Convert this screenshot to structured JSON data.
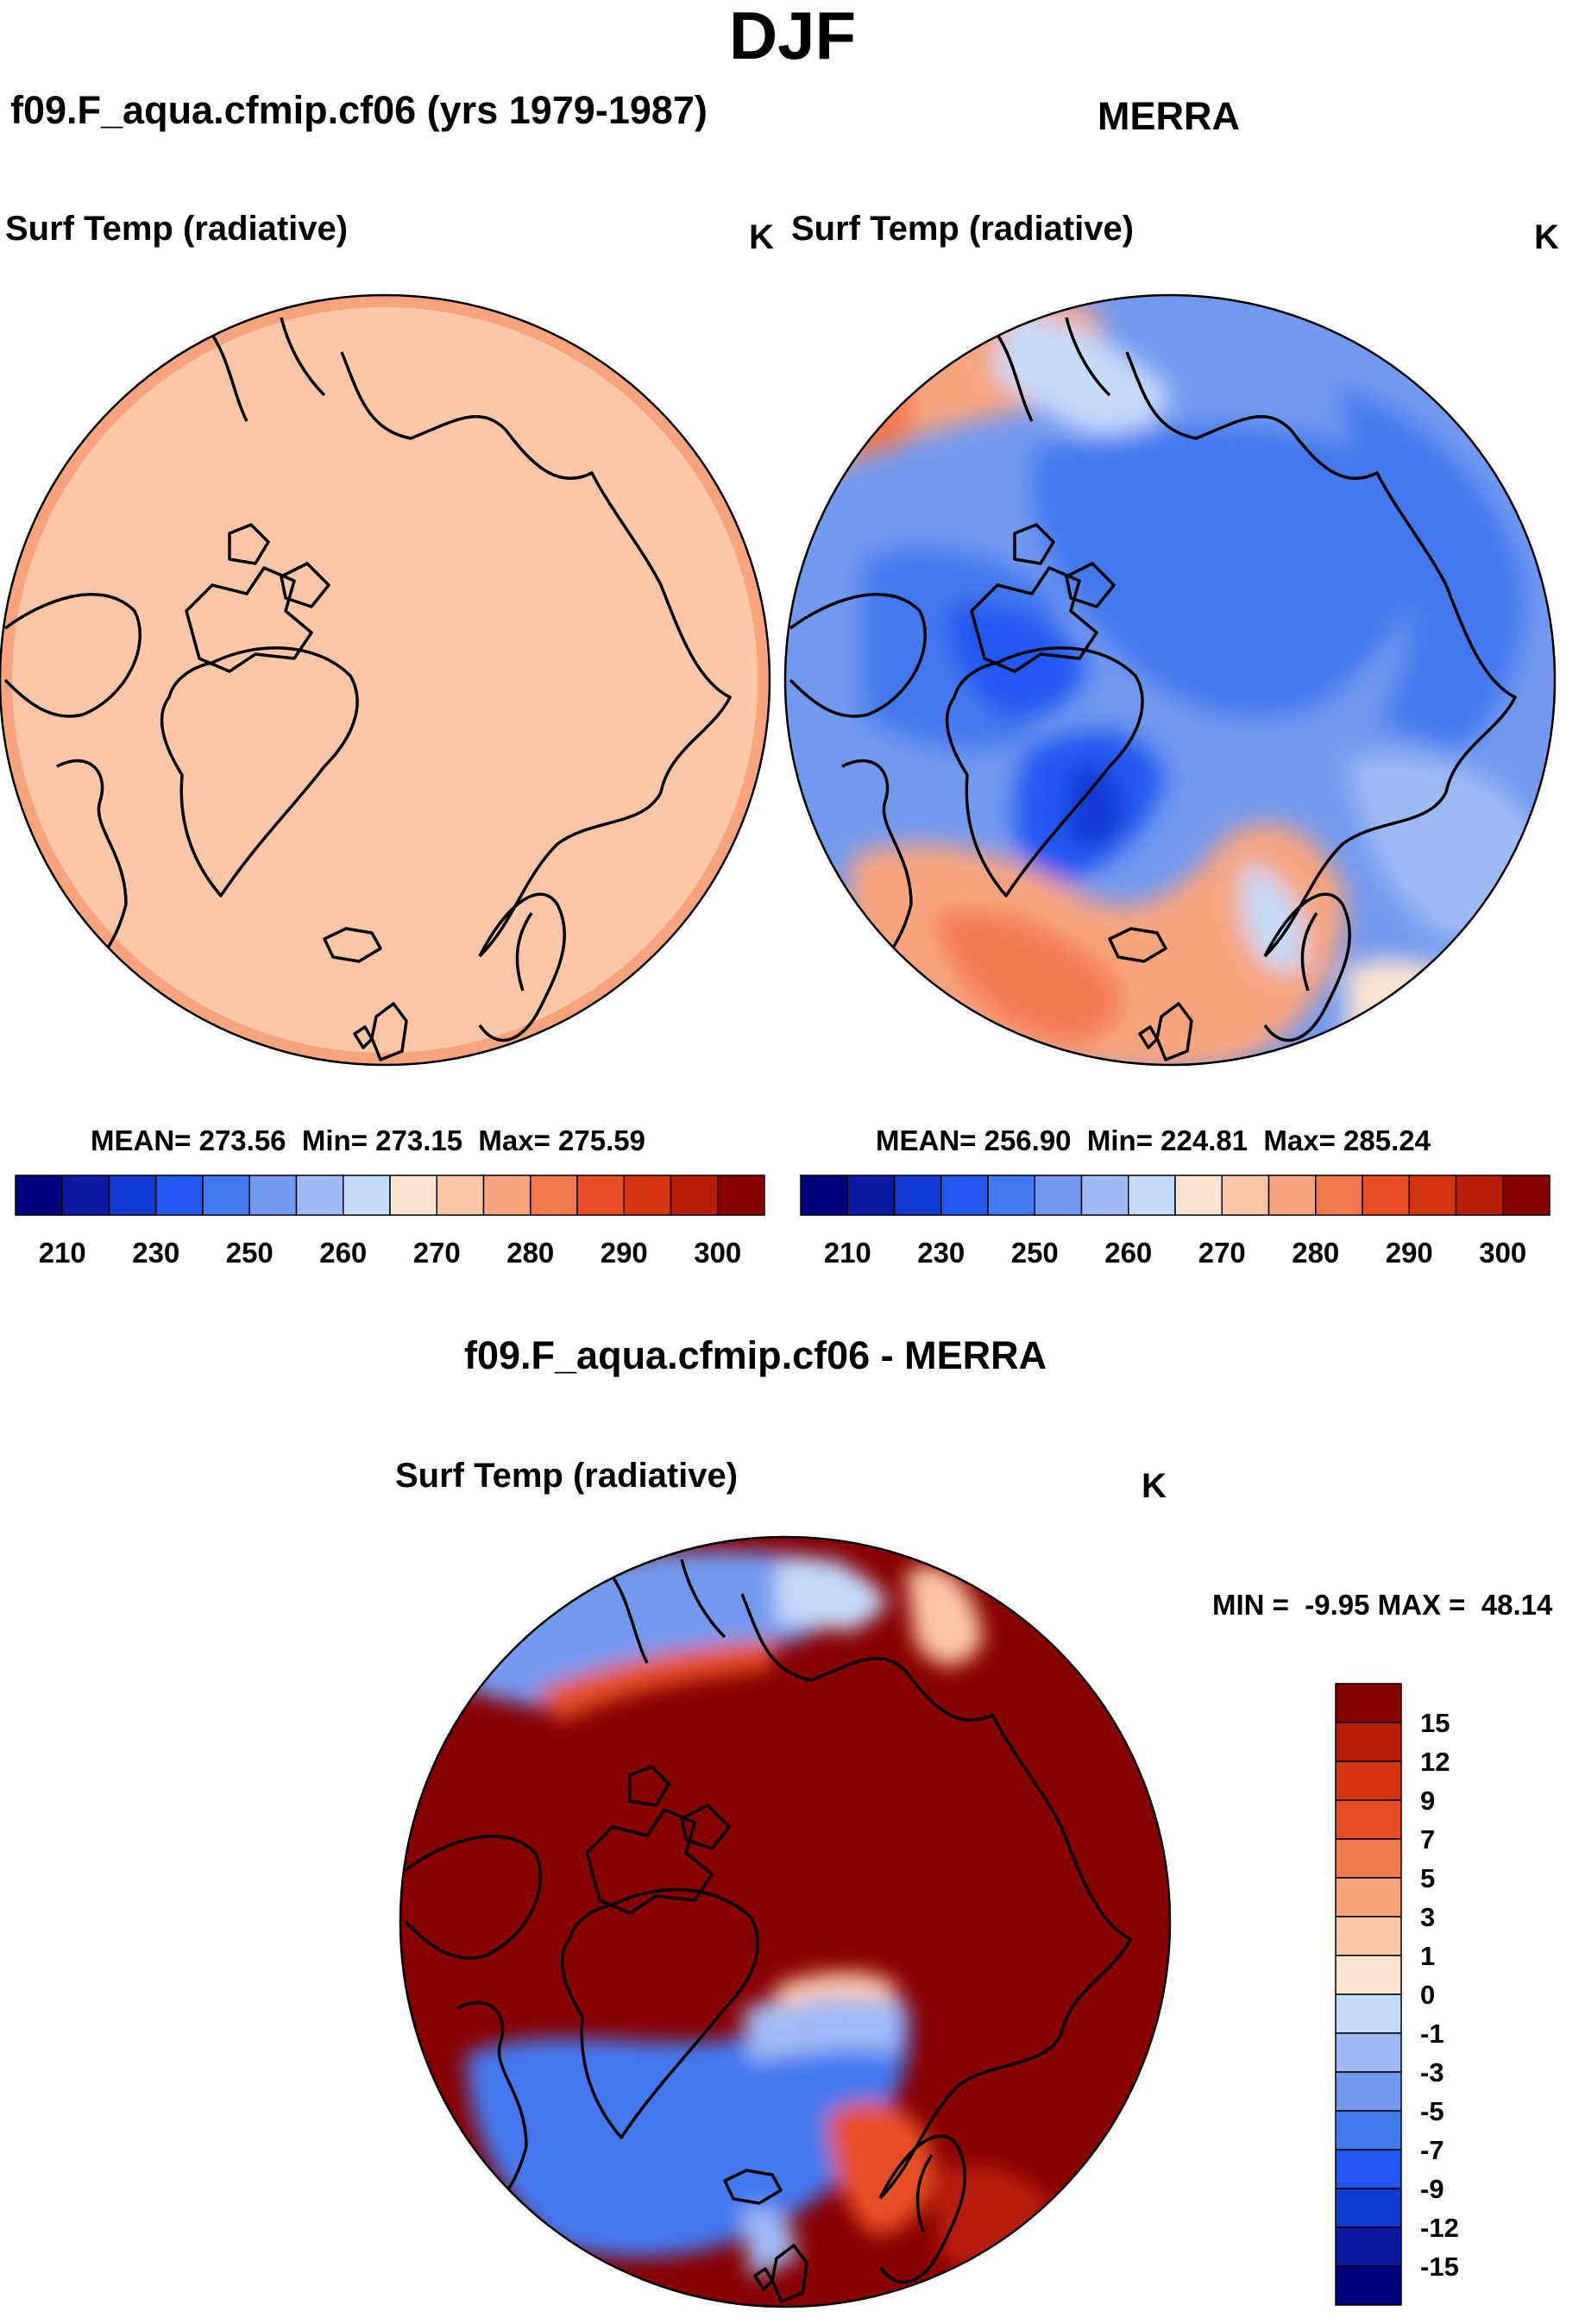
{
  "figure_title": "DJF",
  "panels": {
    "model": {
      "title": "f09.F_aqua.cfmip.cf06 (yrs 1979-1987)",
      "variable": "Surf Temp (radiative)",
      "units": "K",
      "stats": "MEAN= 273.56  Min= 273.15  Max= 275.59"
    },
    "obs": {
      "title": "MERRA",
      "variable": "Surf Temp (radiative)",
      "units": "K",
      "stats": "MEAN= 256.90  Min= 224.81  Max= 285.24"
    },
    "diff": {
      "title": "f09.F_aqua.cfmip.cf06 - MERRA",
      "variable": "Surf Temp (radiative)",
      "units": "K",
      "stats": "MIN =  -9.95 MAX =  48.14"
    }
  },
  "chart_data": [
    {
      "type": "heatmap",
      "projection": "north-polar-stereographic",
      "title": "f09.F_aqua.cfmip.cf06 (yrs 1979-1987)",
      "variable": "Surf Temp (radiative)",
      "units": "K",
      "mean": 273.56,
      "min": 273.15,
      "max": 275.59,
      "colorbar": {
        "levels": [
          205,
          210,
          220,
          230,
          240,
          250,
          255,
          260,
          265,
          270,
          275,
          280,
          285,
          290,
          295,
          300
        ],
        "tick_labels": [
          "210",
          "230",
          "250",
          "260",
          "270",
          "280",
          "290",
          "300"
        ],
        "colors": [
          "#00007f",
          "#0a1aa5",
          "#1239d0",
          "#2258f0",
          "#4478ee",
          "#7399ef",
          "#9fbbf5",
          "#c6dbfa",
          "#fde5d2",
          "#fcc6a9",
          "#f8a47f",
          "#f3794f",
          "#e84f26",
          "#d23510",
          "#b71d0b",
          "#870000"
        ]
      },
      "regions": [
        {
          "name": "polar-cap",
          "value_range": [
            273.15,
            275
          ],
          "color": "#fcc6a9"
        },
        {
          "name": "outer-ring",
          "value_range": [
            275,
            275.59
          ],
          "color": "#f8a47f"
        }
      ]
    },
    {
      "type": "heatmap",
      "projection": "north-polar-stereographic",
      "title": "MERRA",
      "variable": "Surf Temp (radiative)",
      "units": "K",
      "mean": 256.9,
      "min": 224.81,
      "max": 285.24,
      "colorbar": {
        "levels": [
          205,
          210,
          220,
          230,
          240,
          250,
          255,
          260,
          265,
          270,
          275,
          280,
          285,
          290,
          295,
          300
        ],
        "tick_labels": [
          "210",
          "230",
          "250",
          "260",
          "270",
          "280",
          "290",
          "300"
        ],
        "colors": [
          "#00007f",
          "#0a1aa5",
          "#1239d0",
          "#2258f0",
          "#4478ee",
          "#7399ef",
          "#9fbbf5",
          "#c6dbfa",
          "#fde5d2",
          "#fcc6a9",
          "#f8a47f",
          "#f3794f",
          "#e84f26",
          "#d23510",
          "#b71d0b",
          "#870000"
        ]
      },
      "regions": [
        {
          "name": "arctic-basin",
          "value_range": [
            240,
            250
          ],
          "color": "#4478ee"
        },
        {
          "name": "greenland-interior",
          "value_range": [
            224.81,
            230
          ],
          "color": "#1239d0"
        },
        {
          "name": "siberia-canada",
          "value_range": [
            250,
            260
          ],
          "color": "#7399ef"
        },
        {
          "name": "north-atlantic",
          "value_range": [
            275,
            285.24
          ],
          "color": "#f3794f"
        },
        {
          "name": "north-pacific",
          "value_range": [
            270,
            280
          ],
          "color": "#f8a47f"
        }
      ]
    },
    {
      "type": "heatmap",
      "projection": "north-polar-stereographic",
      "title": "f09.F_aqua.cfmip.cf06 - MERRA",
      "variable": "Surf Temp (radiative)",
      "units": "K",
      "min": -9.95,
      "max": 48.14,
      "colorbar": {
        "levels": [
          -15,
          -12,
          -9,
          -7,
          -5,
          -3,
          -1,
          0,
          1,
          3,
          5,
          7,
          9,
          12,
          15
        ],
        "tick_labels": [
          "15",
          "12",
          "9",
          "7",
          "5",
          "3",
          "1",
          "0",
          "-1",
          "-3",
          "-5",
          "-7",
          "-9",
          "-12",
          "-15"
        ],
        "colors": [
          "#870000",
          "#b71d0b",
          "#d23510",
          "#e84f26",
          "#f3794f",
          "#f8a47f",
          "#fcc6a9",
          "#fde5d2",
          "#c6dbfa",
          "#9fbbf5",
          "#7399ef",
          "#4478ee",
          "#2258f0",
          "#1239d0",
          "#0a1aa5",
          "#00007f"
        ]
      },
      "regions": [
        {
          "name": "continents-and-arctic",
          "value_range": [
            15,
            48.14
          ],
          "color": "#870000"
        },
        {
          "name": "north-atlantic",
          "value_range": [
            -9.95,
            -1
          ],
          "color": "#4478ee"
        },
        {
          "name": "north-pacific",
          "value_range": [
            -7,
            -1
          ],
          "color": "#7399ef"
        },
        {
          "name": "scandinavia",
          "value_range": [
            7,
            12
          ],
          "color": "#e84f26"
        }
      ]
    }
  ]
}
